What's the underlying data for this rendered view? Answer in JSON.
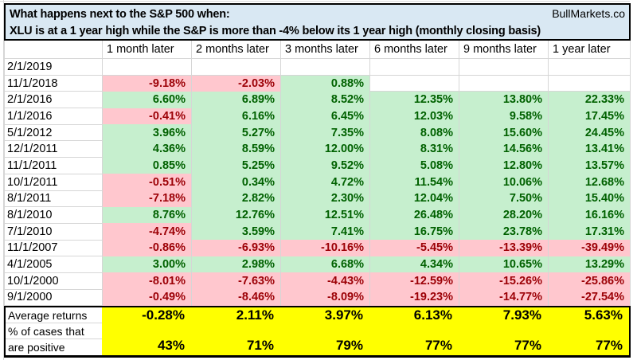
{
  "header": {
    "title_line1": "What happens next to the S&P 500 when:",
    "title_line2": "XLU is at a 1 year high while the S&P is more than -4% below its 1 year high (monthly closing basis)",
    "brand": "BullMarkets.co"
  },
  "chart_data": {
    "type": "table",
    "title": "What happens next to the S&P 500 when: XLU is at a 1 year high while the S&P is more than -4% below its 1 year high (monthly closing basis)",
    "columns": [
      "1 month later",
      "2 months later",
      "3 months later",
      "6 months later",
      "9 months later",
      "1 year later"
    ],
    "rows": [
      {
        "date": "2/1/2019",
        "values": [
          null,
          null,
          null,
          null,
          null,
          null
        ]
      },
      {
        "date": "11/1/2018",
        "values": [
          "-9.18%",
          "-2.03%",
          "0.88%",
          null,
          null,
          null
        ]
      },
      {
        "date": "2/1/2016",
        "values": [
          "6.60%",
          "6.89%",
          "8.52%",
          "12.35%",
          "13.80%",
          "22.33%"
        ]
      },
      {
        "date": "1/1/2016",
        "values": [
          "-0.41%",
          "6.16%",
          "6.45%",
          "12.03%",
          "9.58%",
          "17.45%"
        ]
      },
      {
        "date": "5/1/2012",
        "values": [
          "3.96%",
          "5.27%",
          "7.35%",
          "8.08%",
          "15.60%",
          "24.45%"
        ]
      },
      {
        "date": "12/1/2011",
        "values": [
          "4.36%",
          "8.59%",
          "12.00%",
          "8.31%",
          "14.56%",
          "13.41%"
        ]
      },
      {
        "date": "11/1/2011",
        "values": [
          "0.85%",
          "5.25%",
          "9.52%",
          "5.08%",
          "12.80%",
          "13.57%"
        ]
      },
      {
        "date": "10/1/2011",
        "values": [
          "-0.51%",
          "0.34%",
          "4.72%",
          "11.54%",
          "10.06%",
          "12.68%"
        ]
      },
      {
        "date": "8/1/2011",
        "values": [
          "-7.18%",
          "2.82%",
          "2.30%",
          "12.04%",
          "7.50%",
          "15.40%"
        ]
      },
      {
        "date": "8/1/2010",
        "values": [
          "8.76%",
          "12.76%",
          "12.51%",
          "26.48%",
          "28.20%",
          "16.16%"
        ]
      },
      {
        "date": "7/1/2010",
        "values": [
          "-4.74%",
          "3.59%",
          "7.41%",
          "16.75%",
          "23.78%",
          "17.31%"
        ]
      },
      {
        "date": "11/1/2007",
        "values": [
          "-0.86%",
          "-6.93%",
          "-10.16%",
          "-5.45%",
          "-13.39%",
          "-39.49%"
        ]
      },
      {
        "date": "4/1/2005",
        "values": [
          "3.00%",
          "2.98%",
          "6.68%",
          "4.34%",
          "10.65%",
          "13.29%"
        ]
      },
      {
        "date": "10/1/2000",
        "values": [
          "-8.01%",
          "-7.63%",
          "-4.43%",
          "-12.59%",
          "-15.26%",
          "-25.86%"
        ]
      },
      {
        "date": "9/1/2000",
        "values": [
          "-0.49%",
          "-8.46%",
          "-8.09%",
          "-19.23%",
          "-14.77%",
          "-27.54%"
        ]
      }
    ],
    "summary": {
      "average_label": "Average returns",
      "average_values": [
        "-0.28%",
        "2.11%",
        "3.97%",
        "6.13%",
        "7.93%",
        "5.63%"
      ],
      "positive_label_line1": "% of cases that",
      "positive_label_line2": "are positive",
      "positive_values": [
        "43%",
        "71%",
        "79%",
        "77%",
        "77%",
        "77%"
      ]
    }
  },
  "colors": {
    "positive_bg": "#c6efce",
    "positive_text": "#006100",
    "negative_bg": "#ffc7ce",
    "negative_text": "#9c0006",
    "title_bg": "#d9e8f3",
    "summary_bg": "#ffff00",
    "gridline": "#d6d6d6",
    "border": "#000000"
  }
}
